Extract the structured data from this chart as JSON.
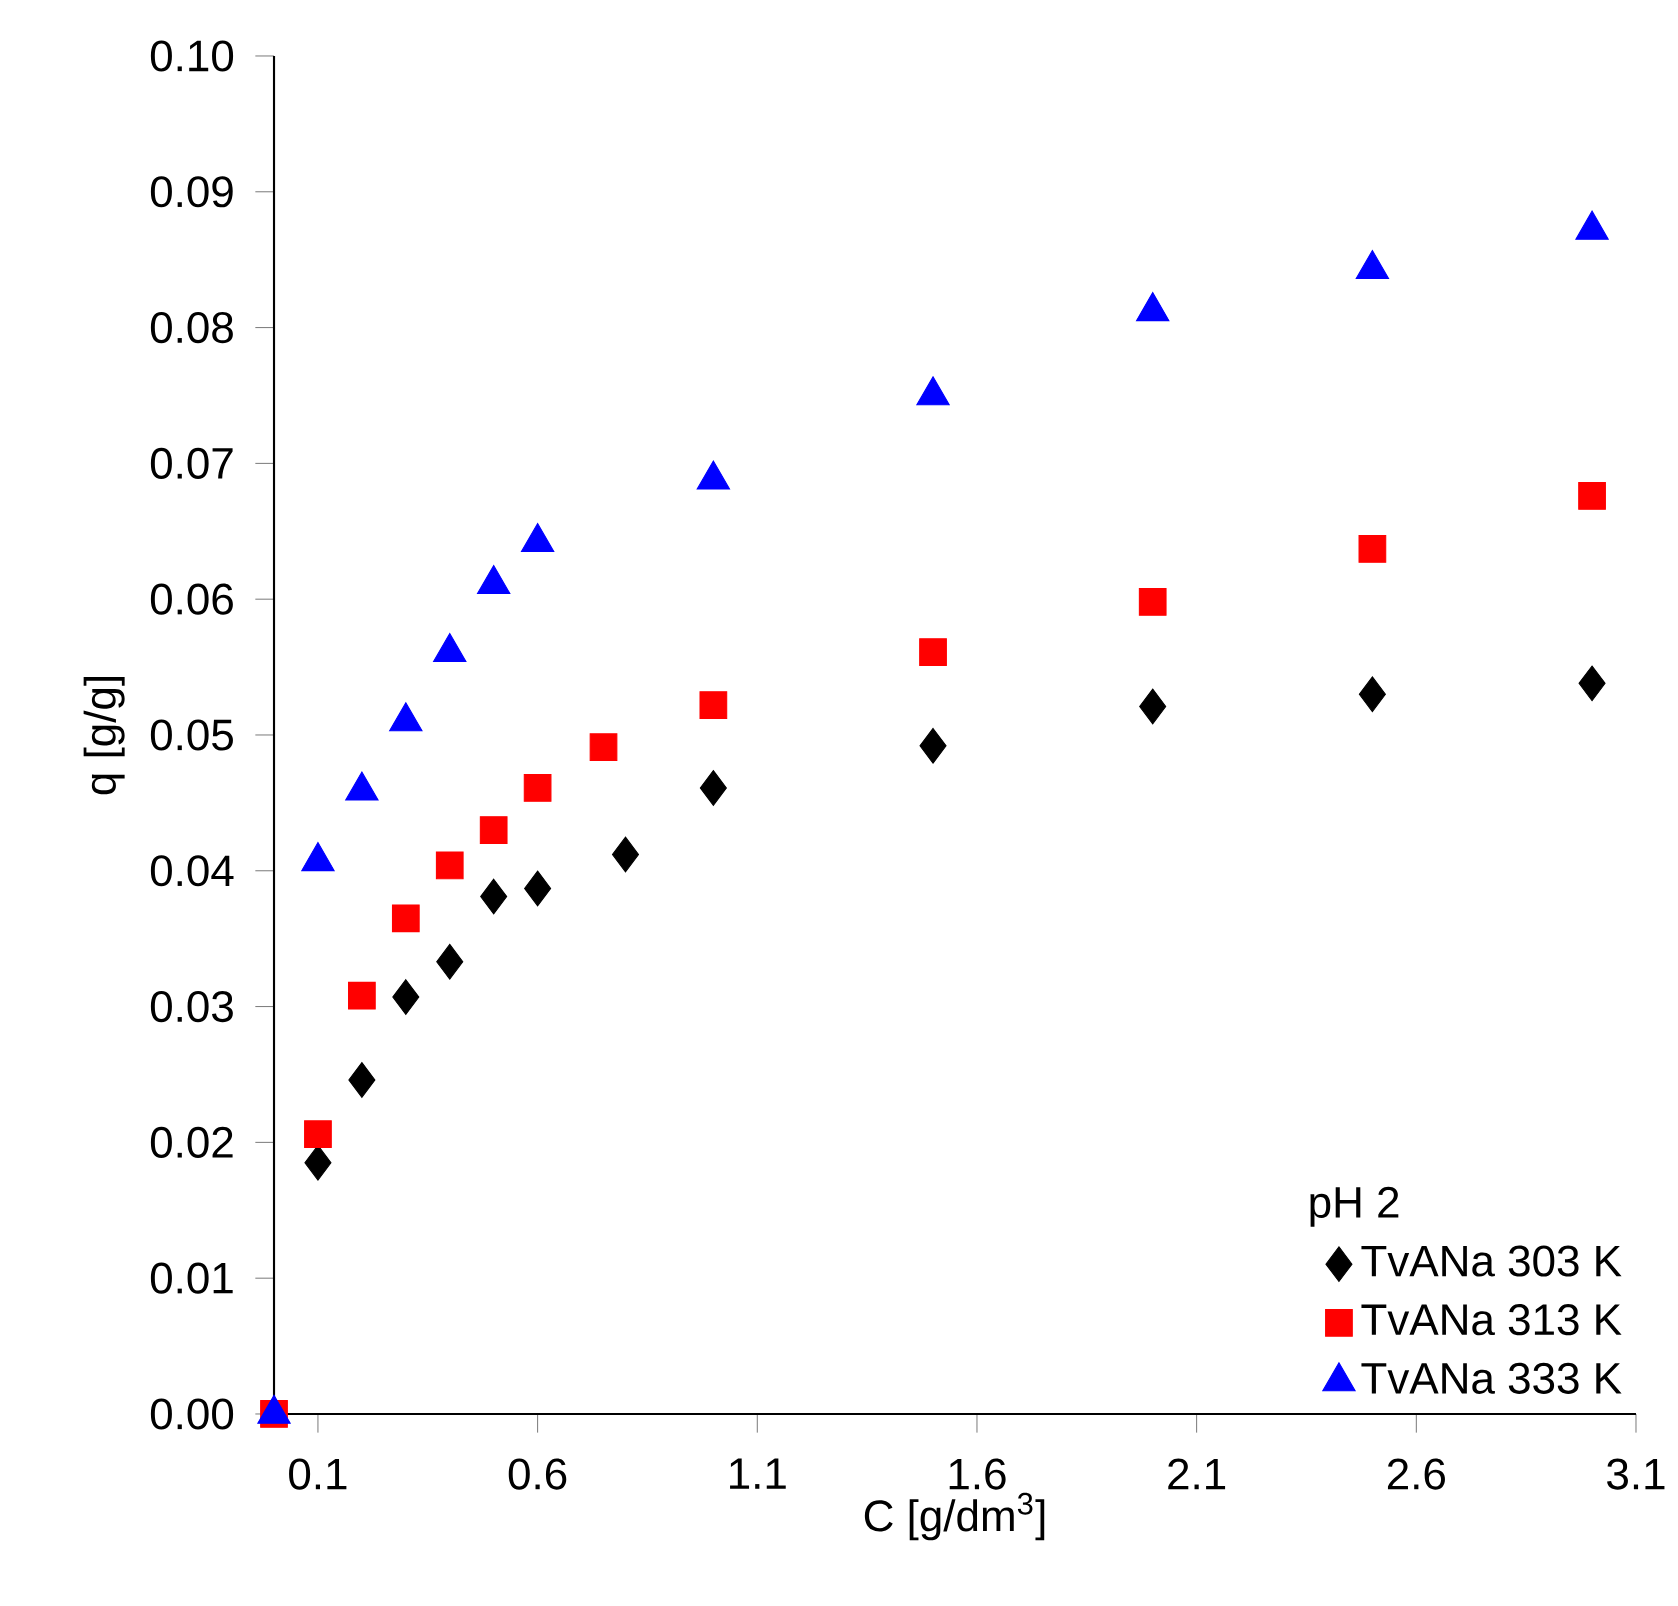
{
  "chart_data": {
    "type": "scatter",
    "xlabel": "C [g/dm$^{3}$]",
    "ylabel": "q [g/g]",
    "legend_title": "pH 2",
    "legend": "bottom right",
    "grid": false,
    "xlim": [
      0,
      3.1
    ],
    "xticks": [
      0.1,
      0.6,
      1.1,
      1.6,
      2.1,
      2.6,
      3.1
    ],
    "ylim": [
      0,
      0.1
    ],
    "yticks": [
      {
        "value": 0,
        "label": "0.00"
      },
      {
        "value": 0.01,
        "label": "0.01"
      },
      {
        "value": 0.02,
        "label": "0.02"
      },
      {
        "value": 0.03,
        "label": "0.03"
      },
      {
        "value": 0.04,
        "label": "0.04"
      },
      {
        "value": 0.05,
        "label": "0.05"
      },
      {
        "value": 0.06,
        "label": "0.06"
      },
      {
        "value": 0.07,
        "label": "0.07"
      },
      {
        "value": 0.08,
        "label": "0.08"
      },
      {
        "value": 0.09,
        "label": "0.09"
      },
      {
        "value": 0.1,
        "label": "0.10"
      }
    ],
    "series": [
      {
        "name": "TvANa 303 K",
        "color": "#000000",
        "marker": "diamond",
        "x": [
          0.1,
          0.2,
          0.3,
          0.4,
          0.5,
          0.6,
          0.8,
          1.0,
          1.5,
          2.0,
          2.5,
          3.0
        ],
        "values": [
          0.0185,
          0.0246,
          0.0307,
          0.0333,
          0.0381,
          0.0387,
          0.0412,
          0.0461,
          0.0492,
          0.0521,
          0.053,
          0.0538
        ]
      },
      {
        "name": "TvANa 313 K",
        "color": "#ff0000",
        "marker": "square",
        "x": [
          0,
          0.1,
          0.2,
          0.3,
          0.4,
          0.5,
          0.6,
          0.75,
          1.0,
          1.5,
          2.0,
          2.5,
          3.0
        ],
        "values": [
          0,
          0.0206,
          0.0308,
          0.0365,
          0.0404,
          0.043,
          0.0461,
          0.0491,
          0.0522,
          0.0561,
          0.0598,
          0.0637,
          0.0676
        ]
      },
      {
        "name": "TvANa 333 K",
        "color": "#0000ff",
        "marker": "triangle",
        "x": [
          0,
          0.1,
          0.2,
          0.3,
          0.4,
          0.5,
          0.6,
          1.0,
          1.5,
          2.0,
          2.5,
          3.0
        ],
        "values": [
          0,
          0.0407,
          0.0459,
          0.051,
          0.0561,
          0.0611,
          0.0642,
          0.0688,
          0.075,
          0.0812,
          0.0843,
          0.0872
        ]
      }
    ]
  }
}
